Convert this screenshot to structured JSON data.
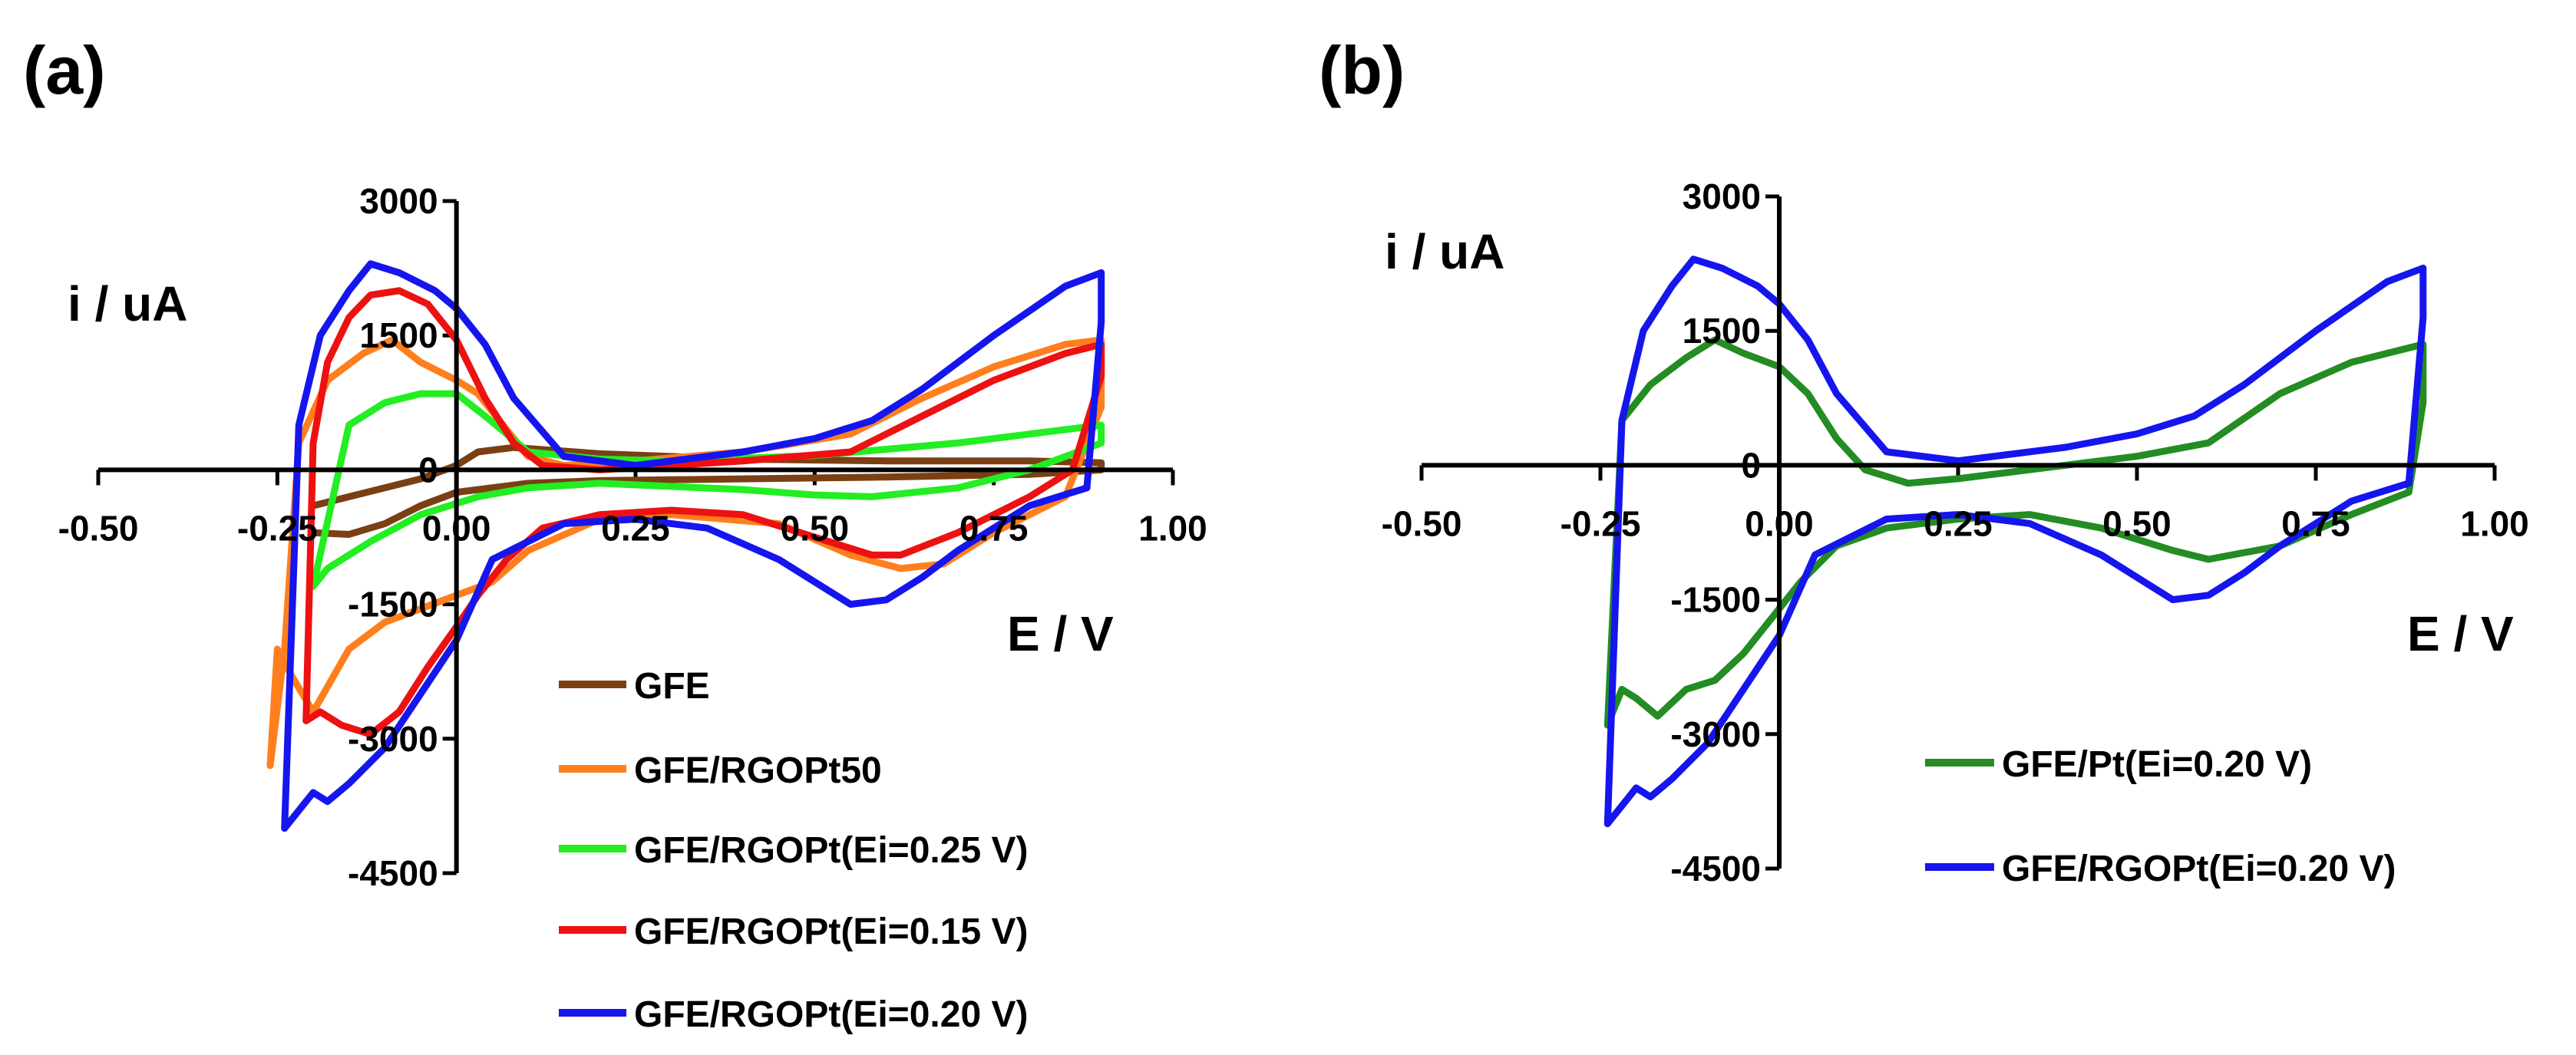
{
  "chart_data": [
    {
      "panel_label": "(a)",
      "type": "line",
      "xlabel": "E / V",
      "ylabel": "i / uA",
      "xlim": [
        -0.5,
        1.0
      ],
      "ylim": [
        -4500,
        3000
      ],
      "xticks": [
        -0.5,
        -0.25,
        0.0,
        0.25,
        0.5,
        0.75,
        1.0
      ],
      "xtick_labels": [
        "-0.50",
        "-0.25",
        "0.00",
        "0.25",
        "0.50",
        "0.75",
        "1.00"
      ],
      "yticks": [
        3000,
        1500,
        0,
        -1500,
        -3000,
        -4500
      ],
      "ytick_labels": [
        "3000",
        "1500",
        "0",
        "-1500",
        "-3000",
        "-4500"
      ],
      "legend_position": "bottom-right",
      "series": [
        {
          "name": "GFE",
          "color": "#7b3f14",
          "x": [
            -0.2,
            -0.15,
            -0.1,
            -0.05,
            0.0,
            0.03,
            0.08,
            0.2,
            0.4,
            0.6,
            0.8,
            0.9,
            0.9,
            0.8,
            0.6,
            0.4,
            0.2,
            0.1,
            0.0,
            -0.05,
            -0.1,
            -0.15,
            -0.2
          ],
          "y": [
            -400,
            -300,
            -200,
            -100,
            50,
            200,
            250,
            180,
            120,
            100,
            100,
            80,
            0,
            -50,
            -80,
            -100,
            -120,
            -150,
            -250,
            -400,
            -600,
            -720,
            -700
          ]
        },
        {
          "name": "GFE/RGOPt50",
          "color": "#ff7f1e",
          "x": [
            -0.26,
            -0.24,
            -0.22,
            -0.18,
            -0.13,
            -0.09,
            -0.05,
            0.0,
            0.03,
            0.06,
            0.1,
            0.15,
            0.25,
            0.4,
            0.55,
            0.65,
            0.75,
            0.85,
            0.9,
            0.9,
            0.85,
            0.75,
            0.68,
            0.62,
            0.55,
            0.45,
            0.3,
            0.2,
            0.1,
            0.05,
            0.0,
            -0.05,
            -0.1,
            -0.15,
            -0.2,
            -0.23,
            -0.25,
            -0.26
          ],
          "y": [
            -3300,
            -2000,
            300,
            1000,
            1300,
            1450,
            1200,
            1000,
            850,
            550,
            150,
            50,
            100,
            200,
            400,
            800,
            1150,
            1400,
            1450,
            700,
            -300,
            -700,
            -1050,
            -1100,
            -950,
            -600,
            -500,
            -550,
            -900,
            -1250,
            -1400,
            -1550,
            -1700,
            -2000,
            -2700,
            -2300,
            -2000,
            -3300
          ]
        },
        {
          "name": "GFE/RGOPt(Ei=0.25 V)",
          "color": "#22ee22",
          "x": [
            -0.2,
            -0.15,
            -0.1,
            -0.05,
            0.0,
            0.04,
            0.1,
            0.2,
            0.3,
            0.5,
            0.7,
            0.9,
            0.9,
            0.8,
            0.7,
            0.58,
            0.5,
            0.4,
            0.2,
            0.1,
            0.03,
            -0.05,
            -0.12,
            -0.18,
            -0.2
          ],
          "y": [
            -1300,
            500,
            750,
            850,
            850,
            600,
            200,
            120,
            100,
            160,
            300,
            500,
            300,
            0,
            -200,
            -300,
            -280,
            -220,
            -150,
            -200,
            -300,
            -500,
            -800,
            -1100,
            -1300
          ]
        },
        {
          "name": "GFE/RGOPt(Ei=0.15 V)",
          "color": "#ee1111",
          "x": [
            -0.21,
            -0.2,
            -0.18,
            -0.15,
            -0.12,
            -0.08,
            -0.04,
            0.0,
            0.04,
            0.08,
            0.12,
            0.2,
            0.4,
            0.55,
            0.65,
            0.75,
            0.85,
            0.9,
            0.9,
            0.86,
            0.8,
            0.7,
            0.62,
            0.58,
            0.5,
            0.4,
            0.3,
            0.2,
            0.12,
            0.07,
            0.03,
            0.0,
            -0.04,
            -0.08,
            -0.12,
            -0.16,
            -0.19,
            -0.21
          ],
          "y": [
            -2800,
            300,
            1200,
            1700,
            1950,
            2000,
            1850,
            1450,
            800,
            300,
            50,
            0,
            100,
            200,
            600,
            1000,
            1300,
            1400,
            1050,
            0,
            -300,
            -700,
            -950,
            -950,
            -750,
            -500,
            -450,
            -500,
            -650,
            -1000,
            -1400,
            -1750,
            -2200,
            -2700,
            -2950,
            -2850,
            -2700,
            -2800
          ]
        },
        {
          "name": "GFE/RGOPt(Ei=0.20 V)",
          "color": "#1515ee",
          "x": [
            -0.24,
            -0.22,
            -0.19,
            -0.15,
            -0.12,
            -0.08,
            -0.03,
            0.0,
            0.04,
            0.08,
            0.15,
            0.25,
            0.4,
            0.5,
            0.58,
            0.65,
            0.75,
            0.85,
            0.9,
            0.9,
            0.88,
            0.8,
            0.7,
            0.65,
            0.6,
            0.55,
            0.45,
            0.35,
            0.25,
            0.15,
            0.05,
            0.0,
            -0.05,
            -0.1,
            -0.15,
            -0.18,
            -0.2,
            -0.24
          ],
          "y": [
            -4000,
            500,
            1500,
            2000,
            2300,
            2200,
            2000,
            1800,
            1400,
            800,
            150,
            50,
            200,
            350,
            550,
            900,
            1500,
            2050,
            2200,
            1650,
            -200,
            -400,
            -900,
            -1200,
            -1450,
            -1500,
            -1000,
            -650,
            -550,
            -600,
            -1000,
            -1900,
            -2500,
            -3100,
            -3500,
            -3700,
            -3600,
            -4000
          ]
        }
      ]
    },
    {
      "panel_label": "(b)",
      "type": "line",
      "xlabel": "E / V",
      "ylabel": "i / uA",
      "xlim": [
        -0.5,
        1.0
      ],
      "ylim": [
        -4500,
        3000
      ],
      "xticks": [
        -0.5,
        -0.25,
        0.0,
        0.25,
        0.5,
        0.75,
        1.0
      ],
      "xtick_labels": [
        "-0.50",
        "-0.25",
        "0.00",
        "0.25",
        "0.50",
        "0.75",
        "1.00"
      ],
      "yticks": [
        3000,
        1500,
        0,
        -1500,
        -3000,
        -4500
      ],
      "ytick_labels": [
        "3000",
        "1500",
        "0",
        "-1500",
        "-3000",
        "-4500"
      ],
      "legend_position": "bottom-right",
      "series": [
        {
          "name": "GFE/Pt(Ei=0.20 V)",
          "color": "#238c23",
          "x": [
            -0.24,
            -0.22,
            -0.18,
            -0.13,
            -0.09,
            -0.05,
            0.0,
            0.04,
            0.08,
            0.12,
            0.18,
            0.25,
            0.4,
            0.5,
            0.6,
            0.7,
            0.8,
            0.9,
            0.9,
            0.88,
            0.8,
            0.7,
            0.6,
            0.55,
            0.45,
            0.35,
            0.25,
            0.15,
            0.08,
            0.03,
            0.0,
            -0.05,
            -0.09,
            -0.13,
            -0.17,
            -0.2,
            -0.22,
            -0.24
          ],
          "y": [
            -2900,
            500,
            900,
            1200,
            1400,
            1250,
            1100,
            800,
            300,
            -50,
            -200,
            -150,
            0,
            100,
            250,
            800,
            1150,
            1350,
            700,
            -300,
            -550,
            -900,
            -1050,
            -950,
            -700,
            -550,
            -600,
            -700,
            -900,
            -1300,
            -1600,
            -2100,
            -2400,
            -2500,
            -2800,
            -2600,
            -2500,
            -2900
          ]
        },
        {
          "name": "GFE/RGOPt(Ei=0.20 V)",
          "color": "#1515ee",
          "x": [
            -0.24,
            -0.22,
            -0.19,
            -0.15,
            -0.12,
            -0.08,
            -0.03,
            0.0,
            0.04,
            0.08,
            0.15,
            0.25,
            0.4,
            0.5,
            0.58,
            0.65,
            0.75,
            0.85,
            0.9,
            0.9,
            0.88,
            0.8,
            0.7,
            0.65,
            0.6,
            0.55,
            0.45,
            0.35,
            0.25,
            0.15,
            0.05,
            0.0,
            -0.05,
            -0.1,
            -0.15,
            -0.18,
            -0.2,
            -0.24
          ],
          "y": [
            -4000,
            500,
            1500,
            2000,
            2300,
            2200,
            2000,
            1800,
            1400,
            800,
            150,
            50,
            200,
            350,
            550,
            900,
            1500,
            2050,
            2200,
            1650,
            -200,
            -400,
            -900,
            -1200,
            -1450,
            -1500,
            -1000,
            -650,
            -550,
            -600,
            -1000,
            -1900,
            -2500,
            -3100,
            -3500,
            -3700,
            -3600,
            -4000
          ]
        }
      ]
    }
  ]
}
